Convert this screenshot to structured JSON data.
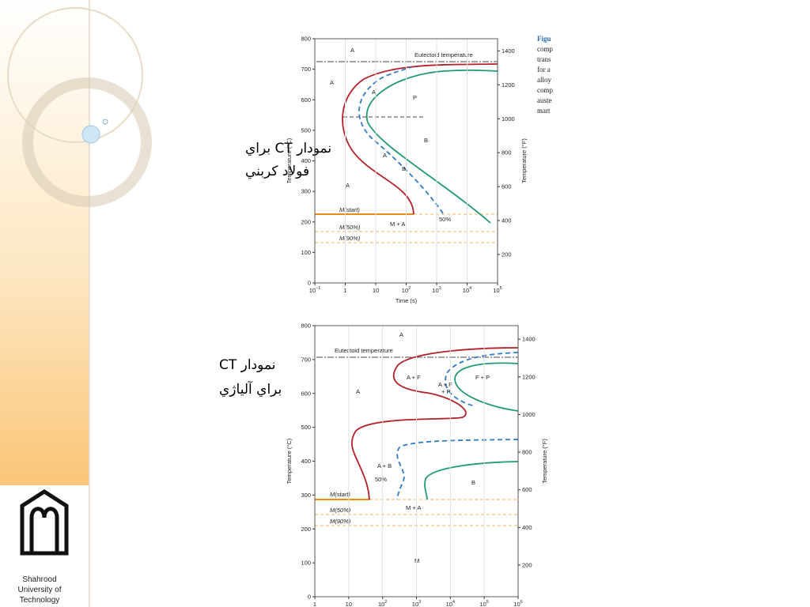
{
  "captions": [
    [
      "نمودار CT براي",
      "فولاد كربني"
    ],
    [
      "نمودار CT",
      "براي آلياژي"
    ]
  ],
  "logo": [
    "Shahrood",
    "University of",
    "Technology"
  ],
  "figures": [
    {
      "y_label": "Temperature (°C)",
      "y2_label": "Temperature (°F)",
      "x_label": "Time (s)",
      "yticks": [
        0,
        100,
        200,
        300,
        400,
        500,
        600,
        700,
        800
      ],
      "y2ticks": [
        200,
        400,
        600,
        800,
        1000,
        1200,
        1400
      ],
      "xticks": [
        {
          "base": "10",
          "exp": "−1"
        },
        "1",
        "10",
        {
          "base": "10",
          "exp": "2"
        },
        {
          "base": "10",
          "exp": "3"
        },
        {
          "base": "10",
          "exp": "4"
        },
        {
          "base": "10",
          "exp": "5"
        }
      ],
      "annotations": [
        "A",
        "Eutectoid temperature",
        "A",
        "A",
        "P",
        "B",
        "A",
        "B",
        "A",
        "M(start)",
        "M + A",
        "50%",
        "M(50%)",
        "M(90%)"
      ],
      "side_text": [
        "Figu",
        "comp",
        "trans",
        "for a",
        "alloy",
        "comp",
        "auste",
        "mart"
      ]
    },
    {
      "y_label": "Temperature (°C)",
      "y2_label": "Temperature (°F)",
      "yticks": [
        0,
        100,
        200,
        300,
        400,
        500,
        600,
        700,
        800
      ],
      "y2ticks": [
        200,
        400,
        600,
        800,
        1000,
        1200,
        1400
      ],
      "xticks": [
        "1",
        "10",
        {
          "base": "10",
          "exp": "2"
        },
        {
          "base": "10",
          "exp": "3"
        },
        {
          "base": "10",
          "exp": "4"
        },
        {
          "base": "10",
          "exp": "5"
        },
        {
          "base": "10",
          "exp": "6"
        }
      ],
      "annotations": [
        "A",
        "Eutectoid temperature",
        "A + F",
        "A + F",
        "+ P",
        "F + P",
        "A",
        "A + B",
        "50%",
        "B",
        "M(start)",
        "M + A",
        "M(50%)",
        "M(90%)",
        "M"
      ]
    }
  ]
}
